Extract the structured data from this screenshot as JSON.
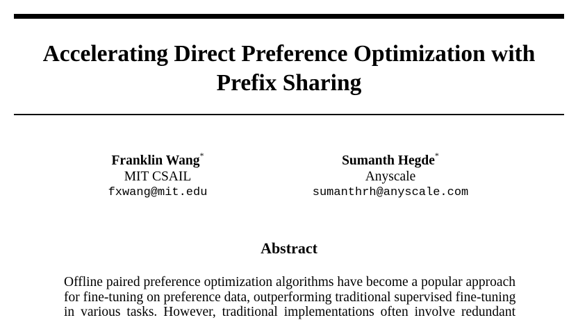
{
  "paper": {
    "title_lines": [
      "Accelerating Direct Preference Optimization with",
      "Prefix Sharing"
    ],
    "authors": [
      {
        "name": "Franklin Wang",
        "mark": "*",
        "affiliation": "MIT CSAIL",
        "email": "fxwang@mit.edu"
      },
      {
        "name": "Sumanth Hegde",
        "mark": "*",
        "affiliation": "Anyscale",
        "email": "sumanthrh@anyscale.com"
      }
    ],
    "abstract_heading": "Abstract",
    "abstract_lines": [
      "Offline paired preference optimization algorithms have become a popular approach",
      "for fine-tuning on preference data, outperforming traditional supervised fine-tuning",
      "in various tasks. However, traditional implementations often involve redundant"
    ]
  }
}
